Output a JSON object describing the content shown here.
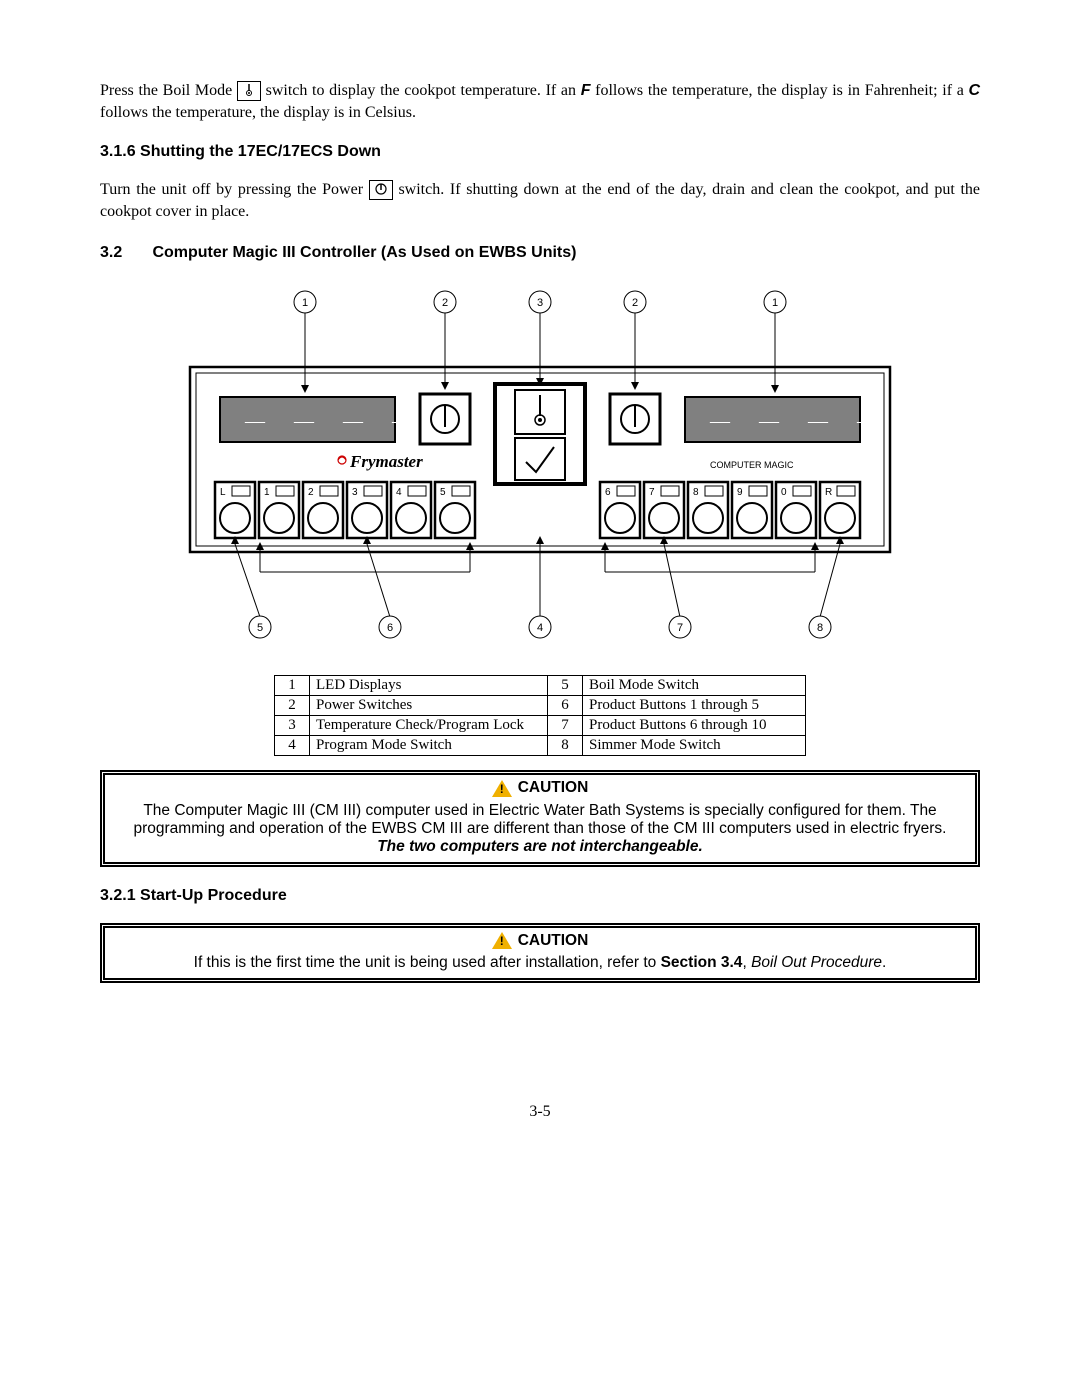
{
  "para1": {
    "pre": "Press the Boil Mode ",
    "mid": " switch to display the cookpot temperature.  If an ",
    "F": "F",
    "afterF": " follows the temperature, the display is in Fahrenheit; if a ",
    "C": "C",
    "afterC": " follows the temperature, the display is in Celsius."
  },
  "h316": "3.1.6  Shutting the 17EC/17ECS Down",
  "para2": {
    "pre": "Turn the unit off by pressing the Power ",
    "post": " switch.  If shutting down at the end of the day, drain and clean the cookpot, and put the cookpot cover in place."
  },
  "h32": {
    "num": "3.2",
    "title": "Computer Magic III Controller (As Used on EWBS Units)"
  },
  "diagram": {
    "callouts_top": [
      "1",
      "2",
      "3",
      "2",
      "1"
    ],
    "callouts_bottom": [
      "5",
      "6",
      "4",
      "7",
      "8"
    ],
    "brand": "Frymaster",
    "right_label": "COMPUTER MAGIC",
    "left_buttons": [
      "L",
      "1",
      "2",
      "3",
      "4",
      "5"
    ],
    "right_buttons": [
      "6",
      "7",
      "8",
      "9",
      "0",
      "R"
    ]
  },
  "legend": [
    {
      "n": "1",
      "t": "LED Displays",
      "n2": "5",
      "t2": "Boil Mode Switch"
    },
    {
      "n": "2",
      "t": "Power Switches",
      "n2": "6",
      "t2": "Product Buttons 1 through 5"
    },
    {
      "n": "3",
      "t": "Temperature Check/Program Lock",
      "n2": "7",
      "t2": "Product Buttons 6 through 10"
    },
    {
      "n": "4",
      "t": "Program Mode Switch",
      "n2": "8",
      "t2": "Simmer Mode Switch"
    }
  ],
  "caution1": {
    "title": "CAUTION",
    "body": "The Computer Magic III (CM III) computer used in Electric Water Bath Systems is specially configured for them.  The programming and operation of the EWBS CM III are different than those of the CM III computers used in electric fryers.",
    "emph": "The two computers are not interchangeable."
  },
  "h321": "3.2.1   Start-Up Procedure",
  "caution2": {
    "title": "CAUTION",
    "pre": "If this is the first time the unit is being used after installation, refer to ",
    "bold": "Section 3.4",
    "mid": ", ",
    "ital": "Boil Out Procedure",
    "post": "."
  },
  "page": "3-5"
}
